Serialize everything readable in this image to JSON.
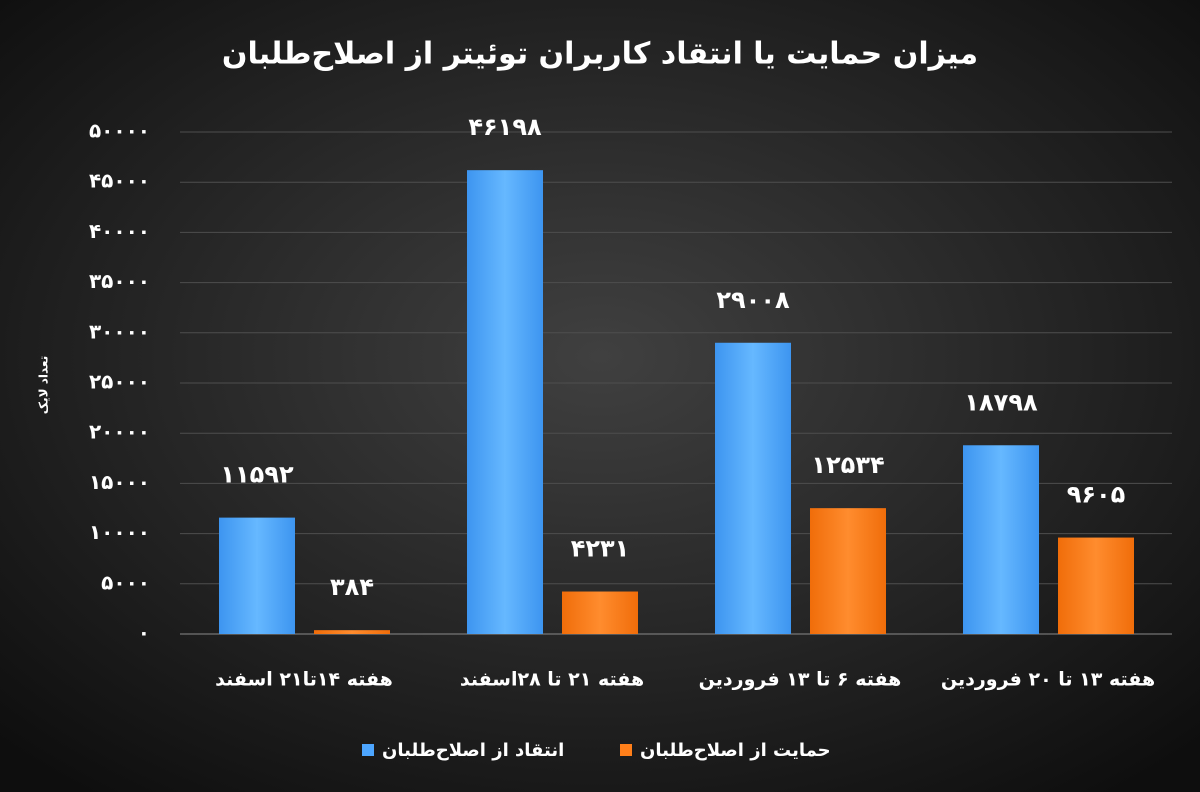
{
  "chart_data": {
    "type": "bar",
    "title": "میزان حمایت یا انتقاد کاربران توئیتر از اصلاح‌طلبان",
    "y_label": "تعداد لایک",
    "categories": [
      "هفته ۱۴تا۲۱ اسفند",
      "هفته ۲۱ تا ۲۸اسفند",
      "هفته ۶ تا ۱۳ فروردین",
      "هفته ۱۳ تا ۲۰ فروردین"
    ],
    "series": [
      {
        "name": "انتقاد از اصلاح‌طلبان",
        "color": "#4da6ff",
        "values": [
          11592,
          46198,
          29008,
          18798
        ],
        "value_labels": [
          "۱۱۵۹۲",
          "۴۶۱۹۸",
          "۲۹۰۰۸",
          "۱۸۷۹۸"
        ]
      },
      {
        "name": "حمایت از اصلاح‌طلبان",
        "color": "#ff7f1a",
        "values": [
          384,
          4231,
          12534,
          9605
        ],
        "value_labels": [
          "۳۸۴",
          "۴۲۳۱",
          "۱۲۵۳۴",
          "۹۶۰۵"
        ]
      }
    ],
    "ylim": [
      0,
      50000
    ],
    "yticks": [
      {
        "value": 0,
        "label": "۰"
      },
      {
        "value": 5000,
        "label": "۵۰۰۰"
      },
      {
        "value": 10000,
        "label": "۱۰۰۰۰"
      },
      {
        "value": 15000,
        "label": "۱۵۰۰۰"
      },
      {
        "value": 20000,
        "label": "۲۰۰۰۰"
      },
      {
        "value": 25000,
        "label": "۲۵۰۰۰"
      },
      {
        "value": 30000,
        "label": "۳۰۰۰۰"
      },
      {
        "value": 35000,
        "label": "۳۵۰۰۰"
      },
      {
        "value": 40000,
        "label": "۴۰۰۰۰"
      },
      {
        "value": 45000,
        "label": "۴۵۰۰۰"
      },
      {
        "value": 50000,
        "label": "۵۰۰۰۰"
      }
    ],
    "grid": true
  }
}
